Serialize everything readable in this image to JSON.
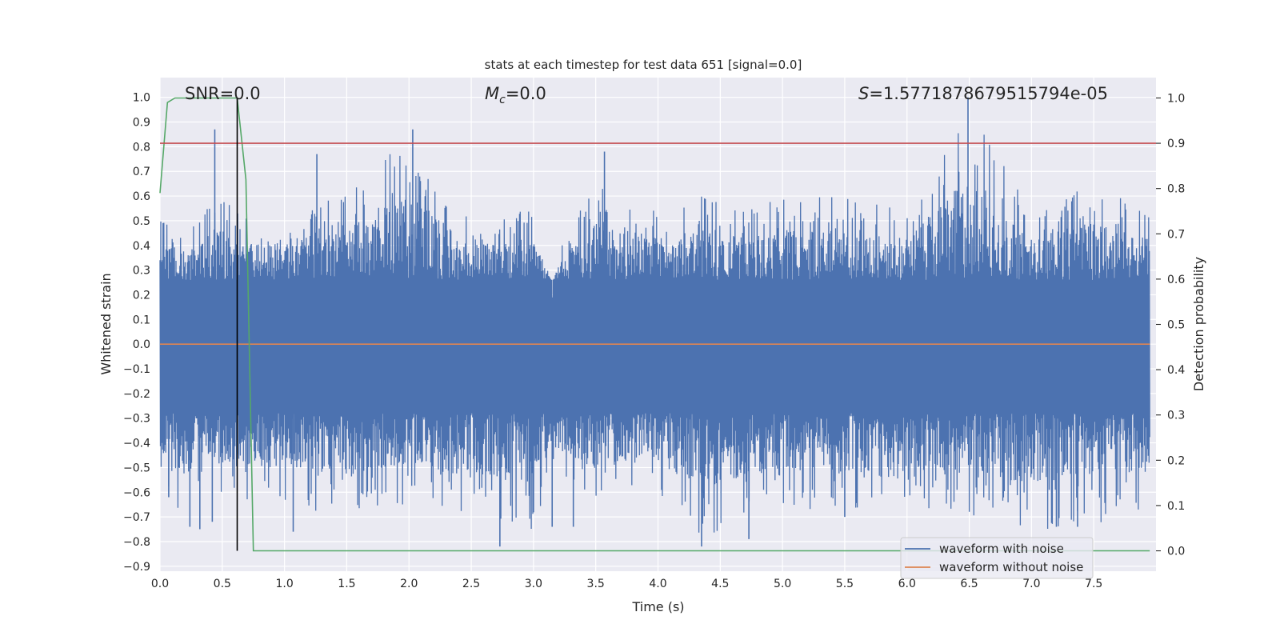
{
  "chart_data": {
    "type": "line",
    "title": "stats at each timestep for test data 651 [signal=0.0]",
    "xlabel": "Time (s)",
    "ylabel": "Whitened strain",
    "ylabel_right": "Detection probability",
    "xlim": [
      0.0,
      8.0
    ],
    "ylim": [
      -0.92,
      1.08
    ],
    "ylim_right": [
      -0.045,
      1.045
    ],
    "x_ticks": [
      0.0,
      0.5,
      1.0,
      1.5,
      2.0,
      2.5,
      3.0,
      3.5,
      4.0,
      4.5,
      5.0,
      5.5,
      6.0,
      6.5,
      7.0,
      7.5
    ],
    "x_tick_labels": [
      "0.0",
      "0.5",
      "1.0",
      "1.5",
      "2.0",
      "2.5",
      "3.0",
      "3.5",
      "4.0",
      "4.5",
      "5.0",
      "5.5",
      "6.0",
      "6.5",
      "7.0",
      "7.5"
    ],
    "y_ticks": [
      1.0,
      0.9,
      0.8,
      0.7,
      0.6,
      0.5,
      0.4,
      0.3,
      0.2,
      0.1,
      0.0,
      -0.1,
      -0.2,
      -0.3,
      -0.4,
      -0.5,
      -0.6,
      -0.7,
      -0.8,
      -0.9
    ],
    "y_tick_labels": [
      "1.0",
      "0.9",
      "0.8",
      "0.7",
      "0.6",
      "0.5",
      "0.4",
      "0.3",
      "0.2",
      "0.1",
      "0.0",
      "−0.1",
      "−0.2",
      "−0.3",
      "−0.4",
      "−0.5",
      "−0.6",
      "−0.7",
      "−0.8",
      "−0.9"
    ],
    "y_right_ticks": [
      1.0,
      0.9,
      0.8,
      0.7,
      0.6,
      0.5,
      0.4,
      0.3,
      0.2,
      0.1,
      0.0
    ],
    "y_right_tick_labels": [
      "1.0",
      "0.9",
      "0.8",
      "0.7",
      "0.6",
      "0.5",
      "0.4",
      "0.3",
      "0.2",
      "0.1",
      "0.0"
    ],
    "annotations": {
      "snr": "SNR=0.0",
      "mc_symbol": "M",
      "mc_sub": "c",
      "mc_value": "=0.0",
      "s_symbol": "S",
      "s_value": "=1.5771878679515794e-05"
    },
    "series": [
      {
        "name": "waveform with noise",
        "color": "#4c72b0",
        "axis": "left",
        "envelope": {
          "x": [
            0.0,
            0.1,
            0.2,
            0.3,
            0.45,
            0.6,
            0.75,
            1.0,
            1.5,
            2.0,
            2.5,
            3.0,
            3.15,
            3.25,
            3.5,
            4.0,
            4.35,
            4.7,
            5.0,
            5.5,
            6.0,
            6.5,
            7.0,
            7.5,
            7.95
          ],
          "upper": [
            0.5,
            0.55,
            0.5,
            0.48,
            0.62,
            0.55,
            0.5,
            0.55,
            0.6,
            0.85,
            0.5,
            0.55,
            0.25,
            0.45,
            0.65,
            0.55,
            0.6,
            0.55,
            0.6,
            0.6,
            0.55,
            0.95,
            0.55,
            0.65,
            0.55
          ],
          "lower": [
            -0.55,
            -0.7,
            -0.72,
            -0.6,
            -0.6,
            -0.6,
            -0.65,
            -0.65,
            -0.7,
            -0.65,
            -0.7,
            -0.75,
            -0.5,
            -0.55,
            -0.65,
            -0.6,
            -0.8,
            -0.7,
            -0.65,
            -0.7,
            -0.65,
            -0.7,
            -0.75,
            -0.75,
            -0.65
          ]
        },
        "spikes": [
          {
            "x": 0.44,
            "y": 0.87
          },
          {
            "x": 2.03,
            "y": 0.87
          },
          {
            "x": 6.49,
            "y": 1.0
          },
          {
            "x": 3.57,
            "y": 0.78
          },
          {
            "x": 1.26,
            "y": 0.77
          },
          {
            "x": 0.07,
            "y": -0.62
          },
          {
            "x": 0.24,
            "y": -0.74
          },
          {
            "x": 0.32,
            "y": -0.75
          },
          {
            "x": 0.42,
            "y": -0.72
          },
          {
            "x": 2.73,
            "y": -0.82
          },
          {
            "x": 4.35,
            "y": -0.82
          },
          {
            "x": 4.73,
            "y": -0.79
          },
          {
            "x": 1.07,
            "y": -0.76
          },
          {
            "x": 3.15,
            "y": -0.74
          },
          {
            "x": 5.5,
            "y": -0.7
          },
          {
            "x": 7.2,
            "y": -0.74
          },
          {
            "x": 7.37,
            "y": -0.74
          },
          {
            "x": 3.32,
            "y": -0.74
          }
        ]
      },
      {
        "name": "waveform without noise",
        "color": "#dd8452",
        "axis": "left",
        "x": [
          0.0,
          7.95
        ],
        "y": [
          0.0,
          0.0
        ]
      },
      {
        "name": "detection probability",
        "color": "#55a868",
        "axis": "right",
        "x": [
          0.0,
          0.06,
          0.12,
          0.62,
          0.69,
          0.75,
          7.95
        ],
        "y": [
          0.79,
          0.99,
          1.0,
          1.0,
          0.82,
          0.0,
          0.0
        ]
      },
      {
        "name": "threshold",
        "color": "#c44e52",
        "axis": "right",
        "x": [
          0.0,
          8.0
        ],
        "y": [
          0.9,
          0.9
        ]
      },
      {
        "name": "marker",
        "color": "#000000",
        "axis": "right",
        "x": [
          0.62,
          0.62
        ],
        "y": [
          0.0,
          1.0
        ]
      }
    ],
    "legend": {
      "position": "bottom-right",
      "entries": [
        {
          "label": "waveform with noise",
          "color": "#4c72b0"
        },
        {
          "label": "waveform without noise",
          "color": "#dd8452"
        }
      ]
    },
    "grid": true
  }
}
